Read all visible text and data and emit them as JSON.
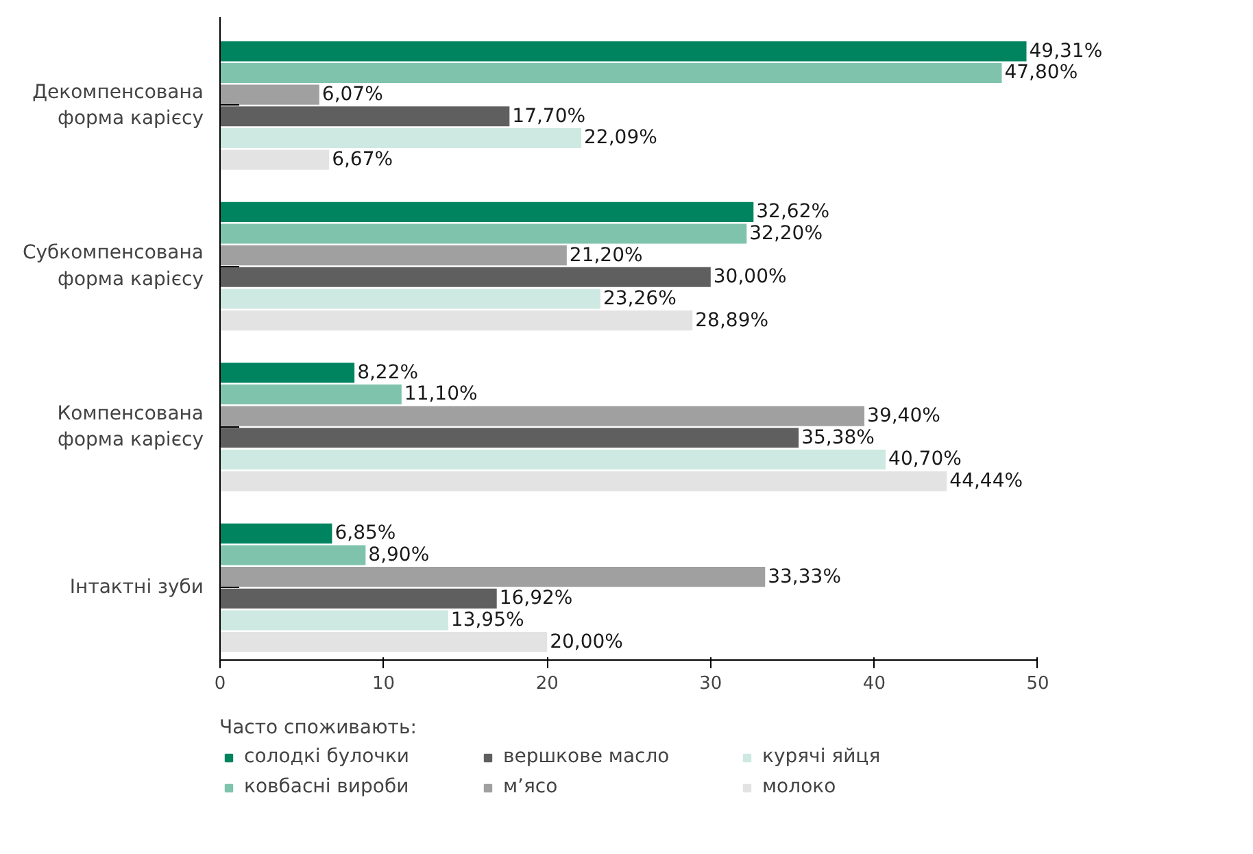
{
  "chart_data": {
    "type": "bar",
    "orientation": "horizontal",
    "legend_title": "Часто споживають:",
    "categories": [
      "Декомпенсована форма карієсу",
      "Субкомпенсована форма карієсу",
      "Компенсована форма карієсу",
      "Інтактні зуби"
    ],
    "series": [
      {
        "name": "солодкі булочки",
        "color": "#00845f",
        "values": [
          49.31,
          32.62,
          8.22,
          6.85
        ],
        "value_labels": [
          "49,31%",
          "32,62%",
          "8,22%",
          "6,85%"
        ]
      },
      {
        "name": "ковбасні вироби",
        "color": "#7fc3ad",
        "values": [
          47.8,
          32.2,
          11.1,
          8.9
        ],
        "value_labels": [
          "47,80%",
          "32,20%",
          "11,10%",
          "8,90%"
        ]
      },
      {
        "name": "м’ясо",
        "color": "#a0a0a0",
        "values": [
          6.07,
          21.2,
          39.4,
          33.33
        ],
        "value_labels": [
          "6,07%",
          "21,20%",
          "39,40%",
          "33,33%"
        ]
      },
      {
        "name": "вершкове масло",
        "color": "#5f5f5f",
        "values": [
          17.7,
          30.0,
          35.38,
          16.92
        ],
        "value_labels": [
          "17,70%",
          "30,00%",
          "35,38%",
          "16,92%"
        ]
      },
      {
        "name": "курячі яйця",
        "color": "#cde9e1",
        "values": [
          22.09,
          23.26,
          40.7,
          13.95
        ],
        "value_labels": [
          "22,09%",
          "23,26%",
          "40,70%",
          "13,95%"
        ]
      },
      {
        "name": "молоко",
        "color": "#e3e3e3",
        "values": [
          6.67,
          28.89,
          44.44,
          20.0
        ],
        "value_labels": [
          "6,67%",
          "28,89%",
          "44,44%",
          "20,00%"
        ]
      }
    ],
    "xlim": [
      0,
      50
    ],
    "xticks": [
      0,
      10,
      20,
      30,
      40,
      50
    ],
    "grid": false,
    "legend": "bottom"
  }
}
